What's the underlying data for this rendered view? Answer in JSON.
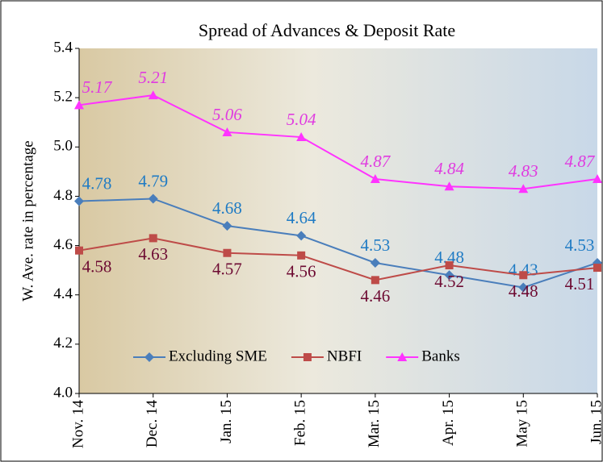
{
  "chart_data": {
    "type": "line",
    "title": "Spread of  Advances & Deposit Rate",
    "y_label": "W. Ave. rate in percentage",
    "categories": [
      "Nov. 14",
      "Dec. 14",
      "Jan. 15",
      "Feb. 15",
      "Mar. 15",
      "Apr. 15",
      "May 15",
      "Jun. 15"
    ],
    "series": [
      {
        "name": "Excluding SME",
        "color": "#4a7ebb",
        "marker": "diamond",
        "values": [
          4.78,
          4.79,
          4.68,
          4.64,
          4.53,
          4.48,
          4.43,
          4.53
        ]
      },
      {
        "name": "NBFI",
        "color": "#be4b48",
        "marker": "square",
        "values": [
          4.58,
          4.63,
          4.57,
          4.56,
          4.46,
          4.52,
          4.48,
          4.51
        ]
      },
      {
        "name": "Banks",
        "color": "#ff33ff",
        "marker": "triangle",
        "values": [
          5.17,
          5.21,
          5.06,
          5.04,
          4.87,
          4.84,
          4.83,
          4.87
        ]
      }
    ],
    "ylim": [
      4.0,
      5.4
    ],
    "yticks": [
      {
        "value": 4.0,
        "label": "4.0"
      },
      4.2,
      4.4,
      4.6,
      4.8,
      {
        "value": 5.0,
        "label": "5.0"
      },
      5.2,
      5.4
    ],
    "grid": false
  }
}
